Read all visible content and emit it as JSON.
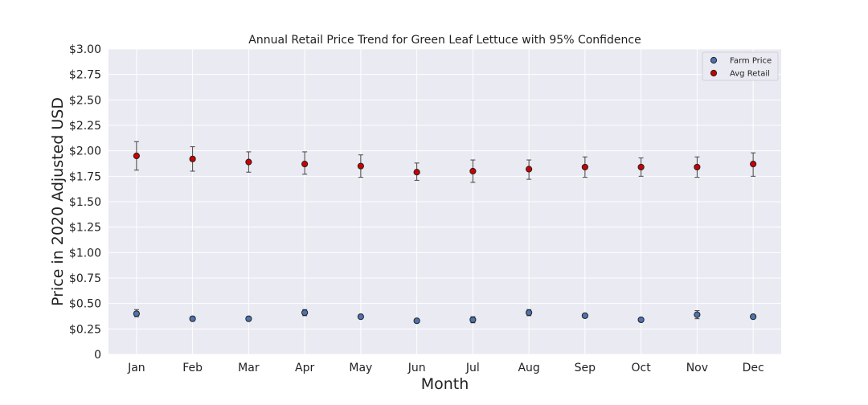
{
  "chart_data": {
    "type": "scatter",
    "title": "Annual Retail Price Trend for Green Leaf Lettuce with 95% Confidence",
    "xlabel": "Month",
    "ylabel": "Price in 2020 Adjusted USD",
    "categories": [
      "Jan",
      "Feb",
      "Mar",
      "Apr",
      "May",
      "Jun",
      "Jul",
      "Aug",
      "Sep",
      "Oct",
      "Nov",
      "Dec"
    ],
    "ylim": [
      0,
      3.0
    ],
    "yticks": [
      0,
      0.25,
      0.5,
      0.75,
      1.0,
      1.25,
      1.5,
      1.75,
      2.0,
      2.25,
      2.5,
      2.75,
      3.0
    ],
    "ytick_labels": [
      "0",
      "$0.25",
      "$0.50",
      "$0.75",
      "$1.00",
      "$1.25",
      "$1.50",
      "$1.75",
      "$2.00",
      "$2.25",
      "$2.50",
      "$2.75",
      "$3.00"
    ],
    "grid": true,
    "legend_position": "top-right",
    "series": [
      {
        "name": "Farm Price",
        "color": "#4c72b0",
        "values": [
          0.4,
          0.35,
          0.35,
          0.41,
          0.37,
          0.33,
          0.34,
          0.41,
          0.38,
          0.34,
          0.39,
          0.37
        ],
        "ci_low": [
          0.37,
          0.33,
          0.33,
          0.38,
          0.35,
          0.32,
          0.31,
          0.38,
          0.36,
          0.33,
          0.35,
          0.35
        ],
        "ci_high": [
          0.44,
          0.37,
          0.37,
          0.44,
          0.39,
          0.34,
          0.37,
          0.44,
          0.4,
          0.35,
          0.43,
          0.39
        ]
      },
      {
        "name": "Avg Retail",
        "color": "#cc0000",
        "values": [
          1.95,
          1.92,
          1.89,
          1.87,
          1.85,
          1.79,
          1.8,
          1.82,
          1.84,
          1.84,
          1.84,
          1.87
        ],
        "ci_low": [
          1.81,
          1.8,
          1.79,
          1.77,
          1.74,
          1.71,
          1.69,
          1.72,
          1.74,
          1.75,
          1.74,
          1.75
        ],
        "ci_high": [
          2.09,
          2.04,
          1.99,
          1.99,
          1.96,
          1.88,
          1.91,
          1.91,
          1.94,
          1.93,
          1.94,
          1.98
        ]
      }
    ]
  }
}
